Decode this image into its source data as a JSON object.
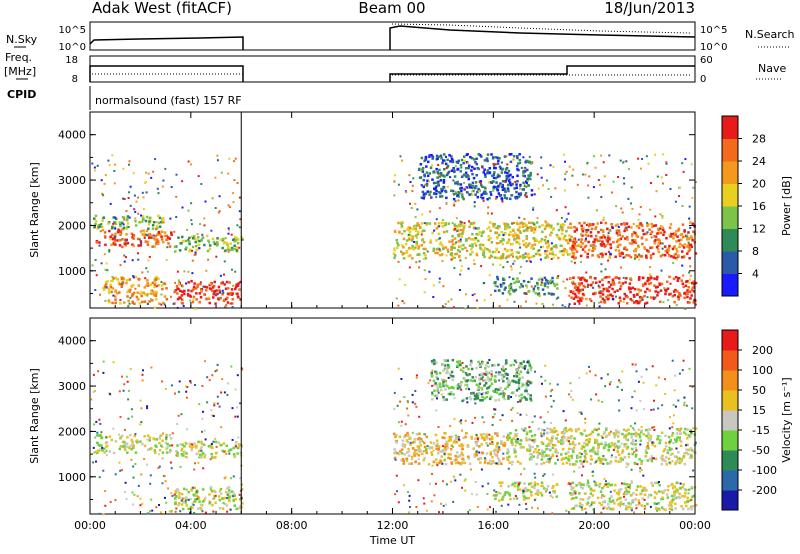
{
  "header": {
    "station": "Adak West (fitACF)",
    "beam": "Beam 00",
    "date": "18/Jun/2013"
  },
  "noise_panel": {
    "left_label": "N.Sky",
    "right_label": "N.Search",
    "left_ticks": [
      "10^5",
      "10^0"
    ],
    "right_ticks": [
      "10^5",
      "10^0"
    ]
  },
  "freq_panel": {
    "left_label_1": "Freq.",
    "left_label_2": "[MHz]",
    "right_label": "Nave",
    "left_ticks": [
      "18",
      "8"
    ],
    "right_ticks": [
      "60",
      "0"
    ]
  },
  "cpid": {
    "label": "CPID",
    "value": "normalsound (fast) 157 RF"
  },
  "chart_data": [
    {
      "type": "heatmap",
      "panel": "power",
      "ylabel": "Slant Range [km]",
      "yticks": [
        "1000",
        "2000",
        "3000",
        "4000"
      ],
      "ylim": [
        180,
        4500
      ],
      "xlim": [
        0,
        24
      ],
      "xticks": [
        "00:00",
        "04:00",
        "08:00",
        "12:00",
        "16:00",
        "20:00",
        "00:00"
      ],
      "colorbar": {
        "label": "Power [dB]",
        "ticks": [
          "4",
          "8",
          "12",
          "16",
          "20",
          "24",
          "28"
        ],
        "colors": [
          "#1a1aff",
          "#2a5aa8",
          "#2e8b57",
          "#7cc34a",
          "#e8d020",
          "#f39a1c",
          "#f26a1c",
          "#e81a1a"
        ]
      },
      "segments": [
        {
          "t0": 0.0,
          "t1": 6.0
        },
        {
          "t0": 12.0,
          "t1": 24.0
        }
      ],
      "bands": [
        {
          "t0": 0.2,
          "t1": 3.2,
          "r0": 1550,
          "r1": 1950,
          "level": 6
        },
        {
          "t0": 0.1,
          "t1": 2.9,
          "r0": 1950,
          "r1": 2250,
          "level": 3
        },
        {
          "t0": 3.3,
          "t1": 6.0,
          "r0": 1450,
          "r1": 1800,
          "level": 3
        },
        {
          "t0": 3.3,
          "t1": 6.0,
          "r0": 300,
          "r1": 800,
          "level": 7
        },
        {
          "t0": 0.5,
          "t1": 3.0,
          "r0": 300,
          "r1": 900,
          "level": 5
        },
        {
          "t0": 12.0,
          "t1": 19.0,
          "r0": 1300,
          "r1": 2100,
          "level": 4
        },
        {
          "t0": 13.0,
          "t1": 17.5,
          "r0": 2600,
          "r1": 3600,
          "level": 1
        },
        {
          "t0": 16.0,
          "t1": 18.5,
          "r0": 500,
          "r1": 900,
          "level": 2
        },
        {
          "t0": 19.0,
          "t1": 24.0,
          "r0": 1300,
          "r1": 2100,
          "level": 6
        },
        {
          "t0": 19.0,
          "t1": 24.0,
          "r0": 300,
          "r1": 900,
          "level": 7
        }
      ]
    },
    {
      "type": "heatmap",
      "panel": "velocity",
      "ylabel": "Slant Range [km]",
      "yticks": [
        "1000",
        "2000",
        "3000",
        "4000"
      ],
      "ylim": [
        180,
        4500
      ],
      "xlim": [
        0,
        24
      ],
      "xticks": [
        "00:00",
        "04:00",
        "08:00",
        "12:00",
        "16:00",
        "20:00",
        "00:00"
      ],
      "xlabel": "Time UT",
      "colorbar": {
        "label": "Velocity [m s⁻¹]",
        "ticks": [
          "200",
          "100",
          "50",
          "15",
          "-15",
          "-50",
          "-100",
          "-200"
        ],
        "colors": [
          "#1a1aa8",
          "#2a6aa8",
          "#2e8b57",
          "#6fd040",
          "#c8c8c0",
          "#e8c020",
          "#f3901c",
          "#f25a1c",
          "#e81a1a"
        ]
      },
      "segments": [
        {
          "t0": 0.0,
          "t1": 6.0
        },
        {
          "t0": 12.0,
          "t1": 24.0
        }
      ],
      "bands": [
        {
          "t0": 0.2,
          "t1": 3.2,
          "r0": 1550,
          "r1": 1950,
          "level": 4
        },
        {
          "t0": 3.3,
          "t1": 6.0,
          "r0": 1450,
          "r1": 1800,
          "level": 4
        },
        {
          "t0": 3.3,
          "t1": 6.0,
          "r0": 300,
          "r1": 800,
          "level": 4
        },
        {
          "t0": 12.0,
          "t1": 16.5,
          "r0": 1300,
          "r1": 2000,
          "level": 5
        },
        {
          "t0": 16.5,
          "t1": 24.0,
          "r0": 1300,
          "r1": 2100,
          "level": 4
        },
        {
          "t0": 13.5,
          "t1": 17.5,
          "r0": 2700,
          "r1": 3600,
          "level": 3
        },
        {
          "t0": 16.0,
          "t1": 18.5,
          "r0": 500,
          "r1": 900,
          "level": 4
        },
        {
          "t0": 19.0,
          "t1": 24.0,
          "r0": 300,
          "r1": 900,
          "level": 4
        }
      ]
    }
  ]
}
